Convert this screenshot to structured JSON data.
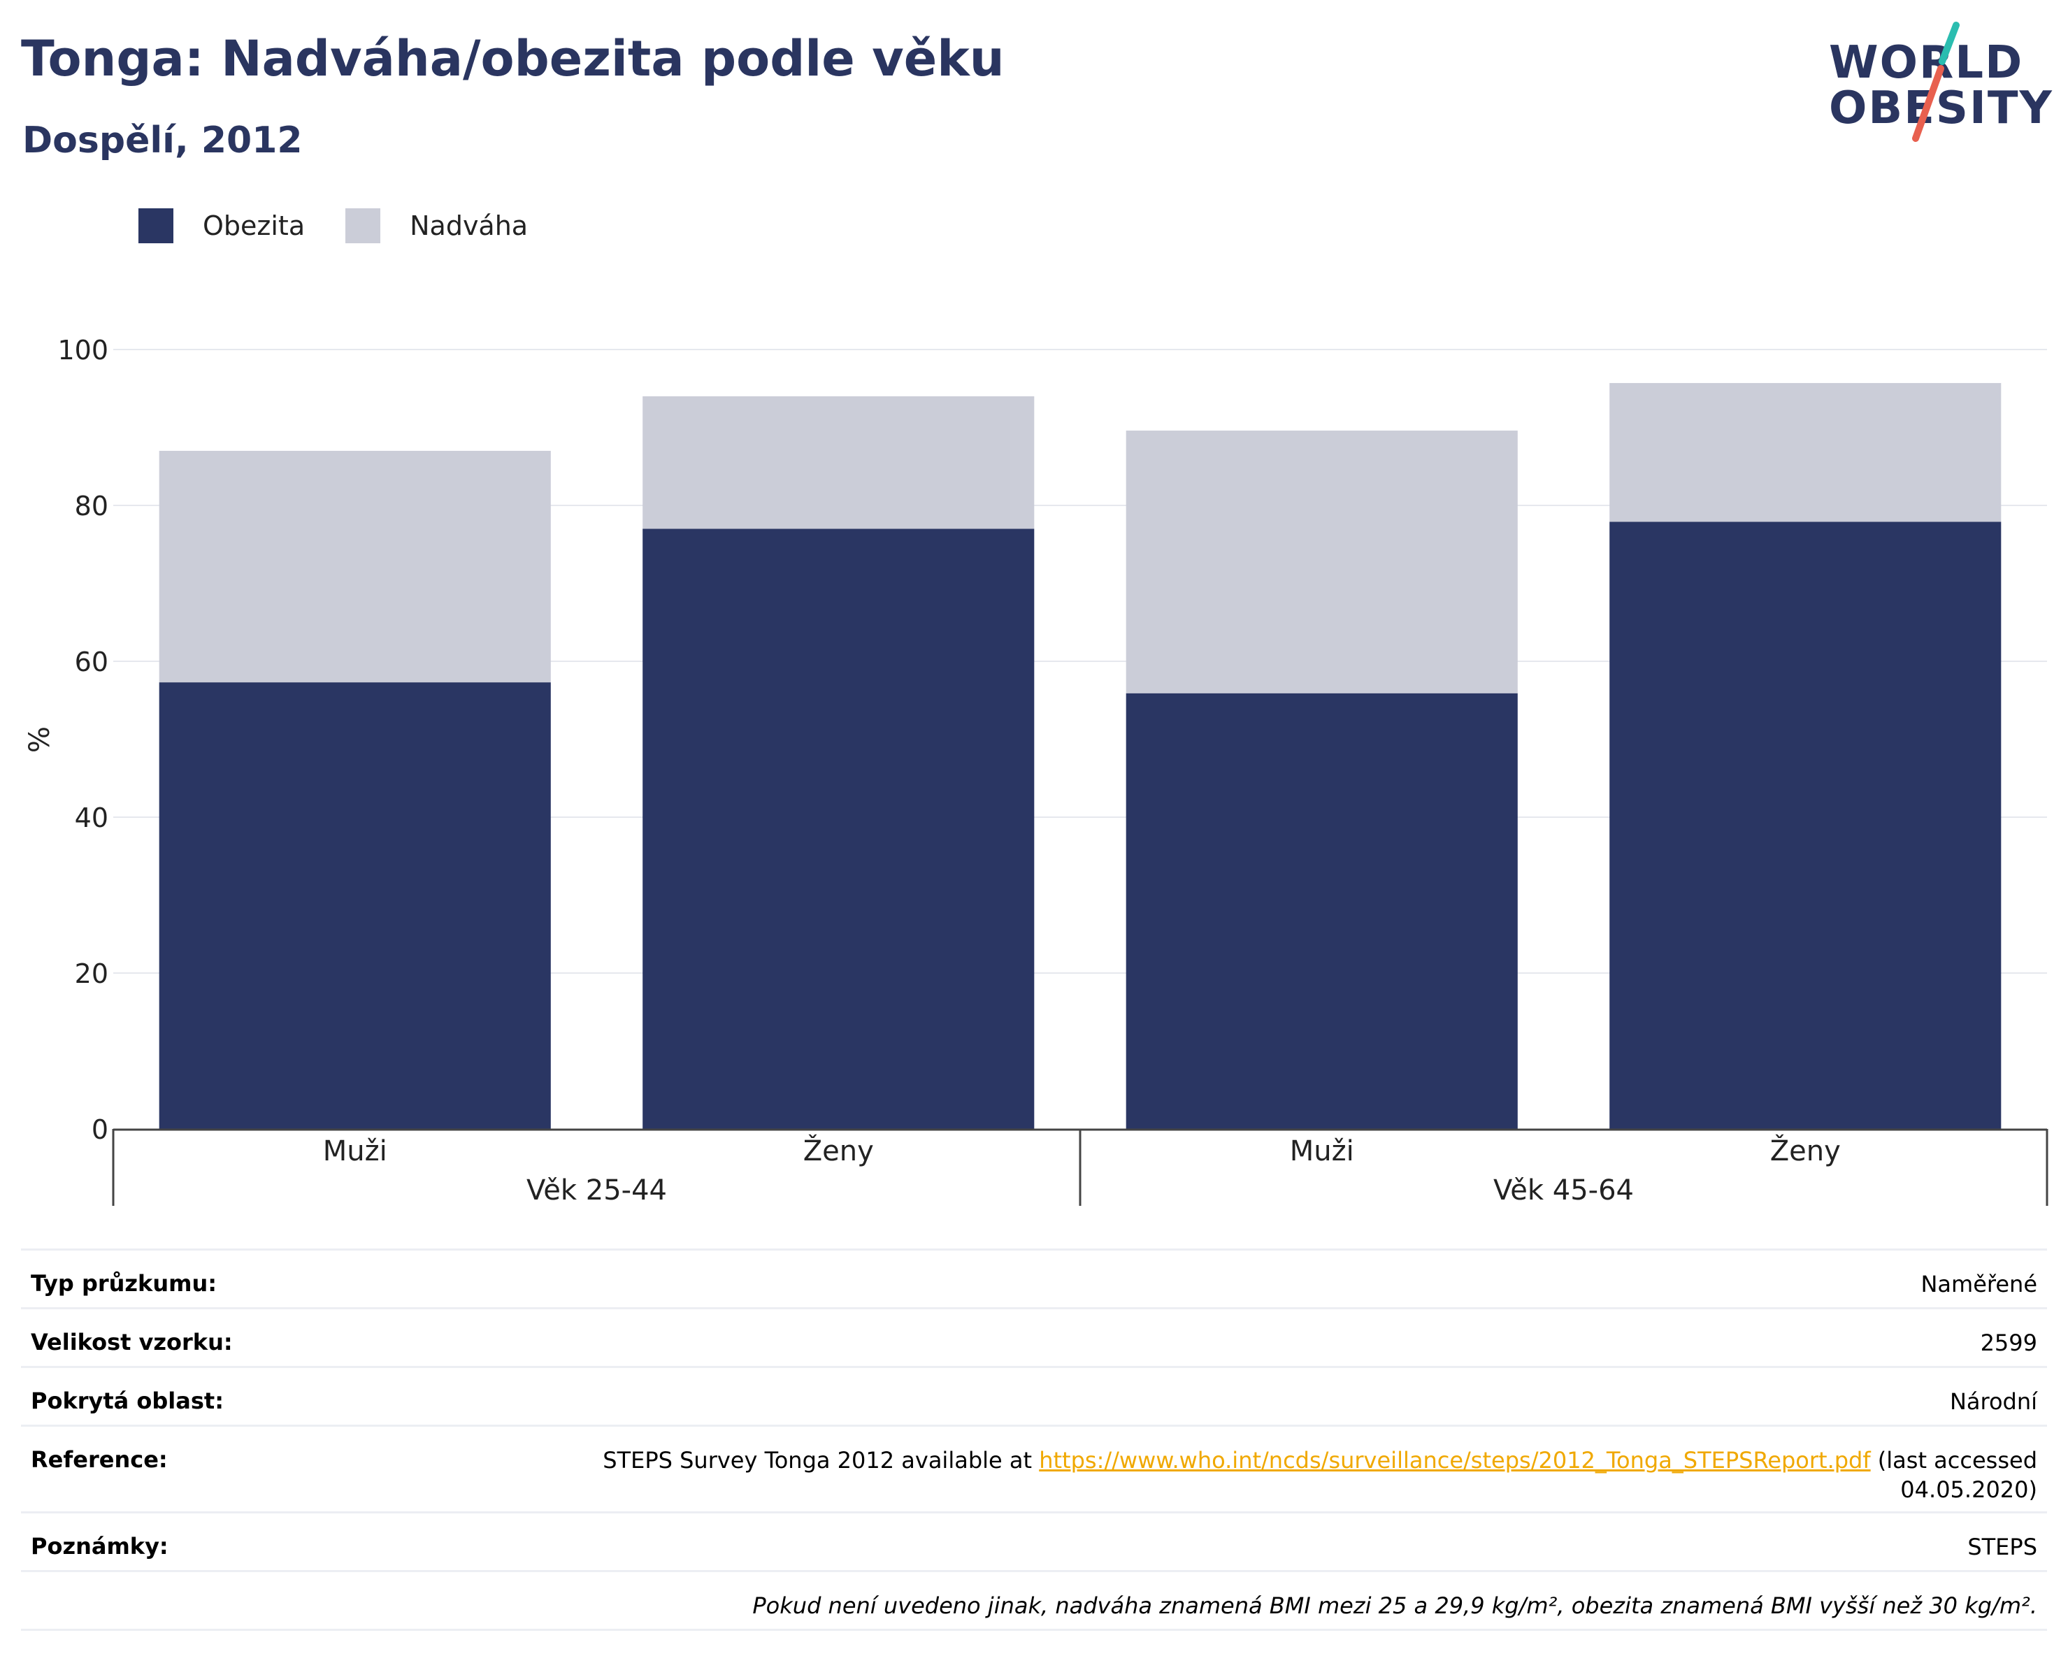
{
  "header": {
    "title": "Tonga: Nadváha/obezita podle věku",
    "subtitle": "Dospělí, 2012"
  },
  "logo": {
    "line1": "WORLD",
    "line2": "OBESITY",
    "accent_colors": [
      "#2bbdb0",
      "#e8604f"
    ]
  },
  "legend": {
    "items": [
      {
        "label": "Obezita",
        "color": "#2a3663"
      },
      {
        "label": "Nadváha",
        "color": "#cbcdd8"
      }
    ]
  },
  "chart_data": {
    "type": "bar",
    "stacked": true,
    "ylabel": "%",
    "ylim": [
      0,
      100
    ],
    "yticks": [
      0,
      20,
      40,
      60,
      80,
      100
    ],
    "grid": true,
    "legend_position": "top-left",
    "categories": [
      "Muži",
      "Ženy",
      "Muži",
      "Ženy"
    ],
    "groups": [
      {
        "label": "Věk 25-44",
        "span": [
          0,
          1
        ]
      },
      {
        "label": "Věk 45-64",
        "span": [
          2,
          3
        ]
      }
    ],
    "series": [
      {
        "name": "Obezita",
        "color": "#2a3663",
        "values": [
          57.3,
          77.0,
          55.9,
          77.9
        ]
      },
      {
        "name": "Nadváha",
        "color": "#cbcdd8",
        "values": [
          29.7,
          17.0,
          33.7,
          17.8
        ]
      }
    ]
  },
  "meta": {
    "rows": [
      {
        "key": "Typ průzkumu:",
        "value": "Naměřené"
      },
      {
        "key": "Velikost vzorku:",
        "value": "2599"
      },
      {
        "key": "Pokrytá oblast:",
        "value": "Národní"
      },
      {
        "key": "Reference:",
        "value_pre": "STEPS Survey Tonga 2012 available at ",
        "link": "https://www.who.int/ncds/surveillance/steps/2012_Tonga_STEPSReport.pdf",
        "value_post": " (last accessed 04.05.2020)"
      },
      {
        "key": "Poznámky:",
        "value": "STEPS"
      }
    ],
    "footnote": "Pokud není uvedeno jinak, nadváha znamená BMI mezi 25 a 29,9 kg/m², obezita znamená BMI vyšší než 30 kg/m²."
  }
}
